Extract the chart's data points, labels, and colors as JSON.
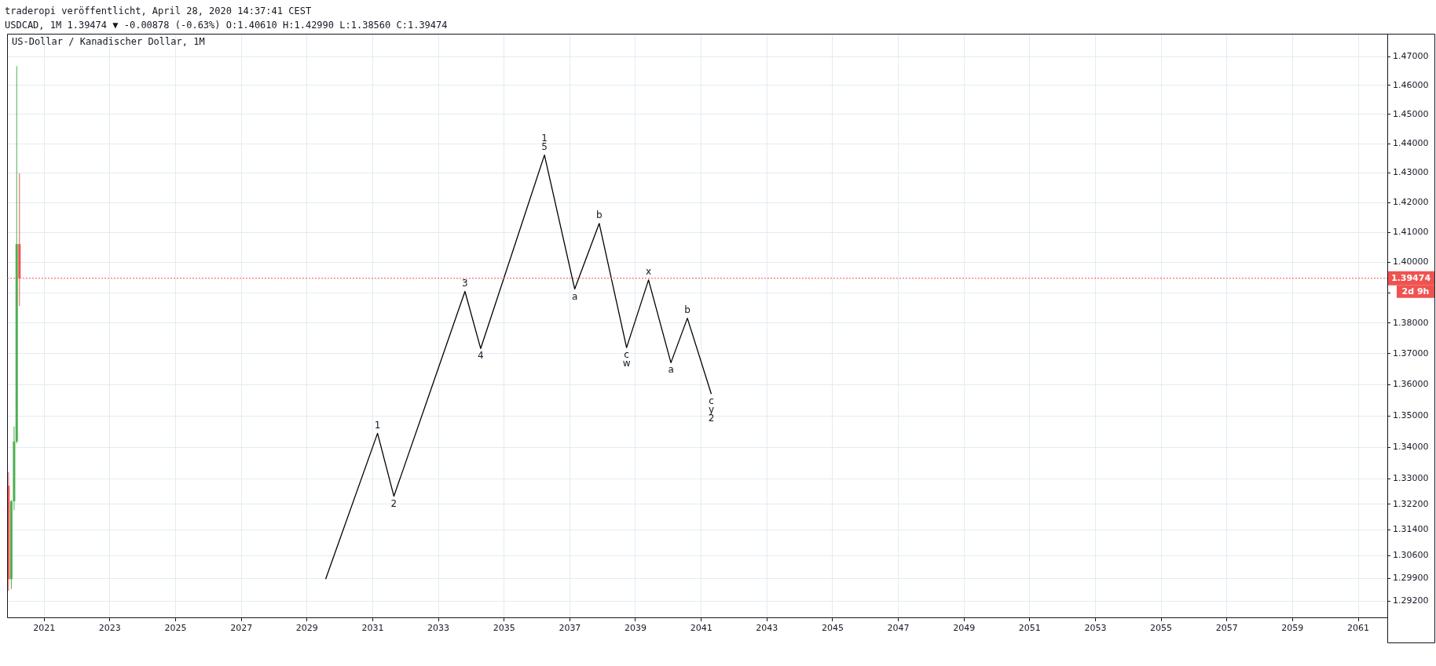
{
  "chart_data": {
    "type": "candlestick",
    "title": "US-Dollar / Kanadischer Dollar, 1M",
    "annotations": [
      "traderopi veröffentlicht, April 28, 2020 14:37:41 CEST",
      "USDCAD, 1M 1.39474 ▼ -0.00878 (-0.63%) O:1.40610 H:1.42990 L:1.38560 C:1.39474",
      "2d 9h",
      {
        "text": "5",
        "x": "2036-03-25",
        "y": 1.4361
      },
      {
        "text": "1",
        "x": "2036-03-25",
        "y": 1.4361
      },
      {
        "text": "1",
        "x": "2031-02-24",
        "y": 1.3444
      },
      {
        "text": "2",
        "x": "2031-08-25",
        "y": 1.3245
      },
      {
        "text": "3",
        "x": "2033-10-23",
        "y": 1.3904
      },
      {
        "text": "4",
        "x": "2034-04-16",
        "y": 1.3717
      },
      {
        "text": "a",
        "x": "2037-02-24",
        "y": 1.3912
      },
      {
        "text": "b",
        "x": "2037-11-24",
        "y": 1.413
      },
      {
        "text": "c",
        "x": "2038-09-24",
        "y": 1.372
      },
      {
        "text": "w",
        "x": "2038-09-24",
        "y": 1.372
      },
      {
        "text": "x",
        "x": "2039-05-26",
        "y": 1.3942
      },
      {
        "text": "a",
        "x": "2040-01-30",
        "y": 1.3671
      },
      {
        "text": "b",
        "x": "2040-07-31",
        "y": 1.3816
      },
      {
        "text": "c",
        "x": "2041-04-23",
        "y": 1.357
      },
      {
        "text": "y",
        "x": "2041-04-23",
        "y": 1.357
      },
      {
        "text": "2",
        "x": "2041-04-23",
        "y": 1.357
      }
    ],
    "series": [
      {
        "type": "candlestick",
        "x": [
          "2019-12",
          "2020-01",
          "2020-02",
          "2020-03",
          "2020-04"
        ],
        "ohlc": [
          [
            1.3278,
            1.3321,
            1.2951,
            1.2987
          ],
          [
            1.2987,
            1.3234,
            1.2957,
            1.3229
          ],
          [
            1.3229,
            1.3466,
            1.3201,
            1.3418
          ],
          [
            1.3418,
            1.4667,
            1.3412,
            1.4061
          ],
          [
            1.4061,
            1.4299,
            1.3856,
            1.39474
          ]
        ],
        "colors": [
          "#ef5350",
          "#4caf50",
          "#4caf50",
          "#4caf50",
          "#ef5350"
        ]
      },
      {
        "type": "line",
        "color": "#000000",
        "x": [
          "2029-07-27",
          "2031-02-24",
          "2031-08-25",
          "2033-10-23",
          "2034-04-16",
          "2036-03-25",
          "2037-02-24",
          "2037-11-24",
          "2038-09-24",
          "2039-05-26",
          "2040-01-30",
          "2040-07-31",
          "2041-04-23"
        ],
        "values": [
          1.2987,
          1.3444,
          1.3245,
          1.3904,
          1.3717,
          1.4361,
          1.3912,
          1.413,
          1.372,
          1.3942,
          1.3671,
          1.3816,
          1.357
        ]
      }
    ],
    "xlim": [
      "2019-11-15",
      "2061-11-20"
    ],
    "xticks": [
      "2021",
      "2023",
      "2025",
      "2027",
      "2029",
      "2031",
      "2033",
      "2035",
      "2037",
      "2039",
      "2041",
      "2043",
      "2045",
      "2047",
      "2049",
      "2051",
      "2053",
      "2055",
      "2057",
      "2059",
      "2061"
    ],
    "ylim": [
      1.287,
      1.478
    ],
    "yticks": [
      {
        "value": 1.292,
        "label": "1.29200"
      },
      {
        "value": 1.299,
        "label": "1.29900"
      },
      {
        "value": 1.306,
        "label": "1.30600"
      },
      {
        "value": 1.314,
        "label": "1.31400"
      },
      {
        "value": 1.322,
        "label": "1.32200"
      },
      {
        "value": 1.33,
        "label": "1.33000"
      },
      {
        "value": 1.34,
        "label": "1.34000"
      },
      {
        "value": 1.35,
        "label": "1.35000"
      },
      {
        "value": 1.36,
        "label": "1.36000"
      },
      {
        "value": 1.37,
        "label": "1.37000"
      },
      {
        "value": 1.38,
        "label": "1.38000"
      },
      {
        "value": 1.39,
        "label": null
      },
      {
        "value": 1.4,
        "label": "1.40000"
      },
      {
        "value": 1.41,
        "label": "1.41000"
      },
      {
        "value": 1.42,
        "label": "1.42000"
      },
      {
        "value": 1.43,
        "label": "1.43000"
      },
      {
        "value": 1.44,
        "label": "1.44000"
      },
      {
        "value": 1.45,
        "label": "1.45000"
      },
      {
        "value": 1.46,
        "label": "1.46000"
      },
      {
        "value": 1.47,
        "label": "1.47000"
      }
    ],
    "log": "y",
    "grid": true,
    "legend": false,
    "ref_lines": [
      {
        "axis": "y",
        "value": 1.39474,
        "label": "1.39474",
        "color": "#ef5350",
        "line_style": "dotted"
      }
    ]
  }
}
